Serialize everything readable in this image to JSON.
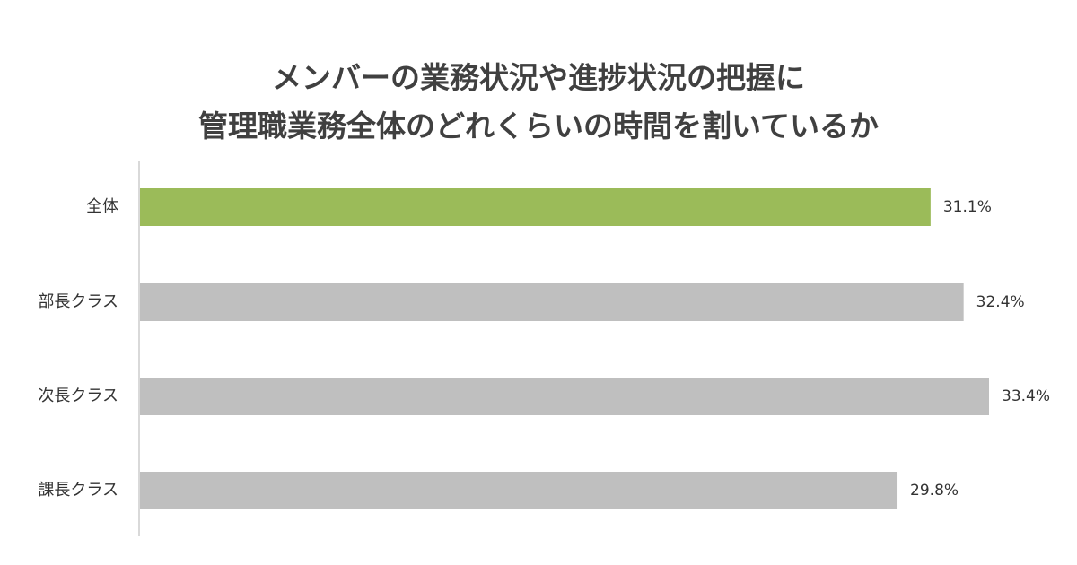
{
  "chart_data": {
    "type": "bar",
    "orientation": "horizontal",
    "title_lines": [
      "メンバーの業務状況や進捗状況の把握に",
      "管理職業務全体のどれくらいの時間を割いているか"
    ],
    "categories": [
      "全体",
      "部長クラス",
      "次長クラス",
      "課長クラス"
    ],
    "values": [
      31.1,
      32.4,
      33.4,
      29.8
    ],
    "value_labels": [
      "31.1%",
      "32.4%",
      "33.4%",
      "29.8%"
    ],
    "unit": "%",
    "xlim": [
      0,
      33.4
    ],
    "grid": false,
    "colors": {
      "highlight": "#9bbb59",
      "default": "#bfbfbf",
      "axis": "#d9d9d9"
    },
    "highlight_index": 0
  }
}
